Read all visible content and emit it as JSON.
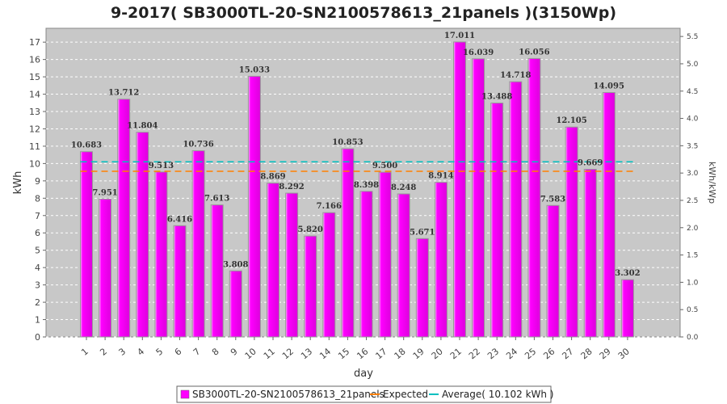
{
  "chart_data": {
    "type": "bar",
    "title": "9-2017( SB3000TL-20-SN2100578613_21panels )(3150Wp)",
    "xlabel": "day",
    "ylabel": "kWh",
    "y2label": "kWh/kWp",
    "ylim": [
      0,
      17.8
    ],
    "y2lim": [
      0,
      5.65
    ],
    "yticks": [
      0,
      1,
      2,
      3,
      4,
      5,
      6,
      7,
      8,
      9,
      10,
      11,
      12,
      13,
      14,
      15,
      16,
      17
    ],
    "y2ticks": [
      "0.0",
      "0.5",
      "1.0",
      "1.5",
      "2.0",
      "2.5",
      "3.0",
      "3.5",
      "4.0",
      "4.5",
      "5.0",
      "5.5"
    ],
    "categories": [
      "1",
      "2",
      "3",
      "4",
      "5",
      "6",
      "7",
      "8",
      "9",
      "10",
      "11",
      "12",
      "13",
      "14",
      "15",
      "16",
      "17",
      "18",
      "19",
      "20",
      "21",
      "22",
      "23",
      "24",
      "25",
      "26",
      "27",
      "28",
      "29",
      "30"
    ],
    "series": [
      {
        "name": "SB3000TL-20-SN2100578613_21panels",
        "color": "#ff00ff",
        "values": [
          10.683,
          7.951,
          13.712,
          11.804,
          9.513,
          6.416,
          10.736,
          7.613,
          3.808,
          15.033,
          8.869,
          8.292,
          5.82,
          7.166,
          10.853,
          8.398,
          9.5,
          8.248,
          5.671,
          8.914,
          17.011,
          16.039,
          13.488,
          14.718,
          16.056,
          7.583,
          12.105,
          9.669,
          14.095,
          3.302
        ],
        "labels": [
          "10.683",
          "7.951",
          "13.712",
          "11.804",
          "9.513",
          "6.416",
          "10.736",
          "7.613",
          "3.808",
          "15.033",
          "8.869",
          "8.292",
          "5.820",
          "7.166",
          "10.853",
          "8.398",
          "9.500",
          "8.248",
          "5.671",
          "8.914",
          "17.011",
          "16.039",
          "13.488",
          "14.718",
          "16.056",
          "7.583",
          "12.105",
          "9.669",
          "14.095",
          "3.302"
        ]
      }
    ],
    "lines": [
      {
        "name": "Expected",
        "value": 9.55,
        "color": "#ff8000"
      },
      {
        "name": "Average( 10.102 kWh )",
        "value": 10.102,
        "color": "#00c0c0"
      }
    ],
    "grid": true,
    "legend": "bottom-center",
    "colors": {
      "plot_bg": "#c8c8c8",
      "grid": "#ffffff",
      "bar": "#ff00ff"
    }
  }
}
